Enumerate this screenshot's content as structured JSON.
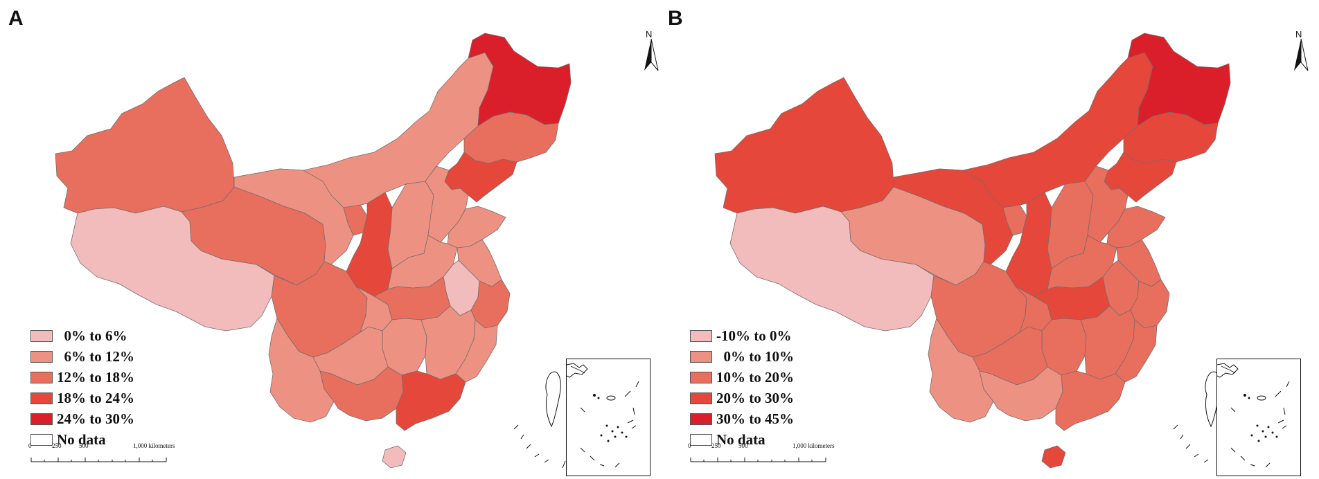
{
  "panels": [
    {
      "letter": "A",
      "legend": [
        {
          "label": "  0% to 6%",
          "color": "#f2bcbc"
        },
        {
          "label": "  6% to 12%",
          "color": "#ed9283"
        },
        {
          "label": "12% to 18%",
          "color": "#e86f5e"
        },
        {
          "label": "18% to 24%",
          "color": "#e5473a"
        },
        {
          "label": "24% to 30%",
          "color": "#db1f2a"
        },
        {
          "label": "No data",
          "color": "#ffffff"
        }
      ],
      "scale": {
        "ticks": [
          "0",
          "250",
          "500",
          "1,000 kilometers"
        ]
      },
      "north_label": "N"
    },
    {
      "letter": "B",
      "legend": [
        {
          "label": "-10% to 0%",
          "color": "#f2bcbc"
        },
        {
          "label": "  0% to 10%",
          "color": "#ed9283"
        },
        {
          "label": "10% to 20%",
          "color": "#e86f5e"
        },
        {
          "label": "20% to 30%",
          "color": "#e5473a"
        },
        {
          "label": "30% to 45%",
          "color": "#db1f2a"
        },
        {
          "label": "No data",
          "color": "#ffffff"
        }
      ],
      "scale": {
        "ticks": [
          "0",
          "250",
          "500",
          "1,000 kilometers"
        ]
      },
      "north_label": "N"
    }
  ],
  "regions": [
    {
      "name": "xinjiang",
      "class_a": 2,
      "class_b": 3
    },
    {
      "name": "tibet",
      "class_a": 0,
      "class_b": 0
    },
    {
      "name": "qinghai",
      "class_a": 2,
      "class_b": 1
    },
    {
      "name": "inner-mongolia",
      "class_a": 1,
      "class_b": 3
    },
    {
      "name": "heilongjiang",
      "class_a": 4,
      "class_b": 4
    },
    {
      "name": "jilin",
      "class_a": 2,
      "class_b": 3
    },
    {
      "name": "liaoning",
      "class_a": 3,
      "class_b": 3
    },
    {
      "name": "beijing",
      "class_a": 4,
      "class_b": 4
    },
    {
      "name": "gansu",
      "class_a": 1,
      "class_b": 3
    },
    {
      "name": "ningxia",
      "class_a": 2,
      "class_b": 2
    },
    {
      "name": "shaanxi",
      "class_a": 3,
      "class_b": 3
    },
    {
      "name": "shanxi",
      "class_a": 1,
      "class_b": 2
    },
    {
      "name": "hebei",
      "class_a": 1,
      "class_b": 2
    },
    {
      "name": "shandong",
      "class_a": 1,
      "class_b": 2
    },
    {
      "name": "henan",
      "class_a": 1,
      "class_b": 2
    },
    {
      "name": "jiangsu",
      "class_a": 1,
      "class_b": 2
    },
    {
      "name": "anhui",
      "class_a": 0,
      "class_b": 2
    },
    {
      "name": "sichuan",
      "class_a": 2,
      "class_b": 2
    },
    {
      "name": "chongqing",
      "class_a": 1,
      "class_b": 2
    },
    {
      "name": "hubei",
      "class_a": 2,
      "class_b": 3
    },
    {
      "name": "zhejiang",
      "class_a": 2,
      "class_b": 2
    },
    {
      "name": "hunan",
      "class_a": 1,
      "class_b": 2
    },
    {
      "name": "jiangxi",
      "class_a": 1,
      "class_b": 2
    },
    {
      "name": "fujian",
      "class_a": 1,
      "class_b": 2
    },
    {
      "name": "yunnan",
      "class_a": 1,
      "class_b": 1
    },
    {
      "name": "guizhou",
      "class_a": 1,
      "class_b": 2
    },
    {
      "name": "guangxi",
      "class_a": 2,
      "class_b": 1
    },
    {
      "name": "guangdong",
      "class_a": 3,
      "class_b": 2
    },
    {
      "name": "hainan",
      "class_a": 0,
      "class_b": 3
    }
  ]
}
